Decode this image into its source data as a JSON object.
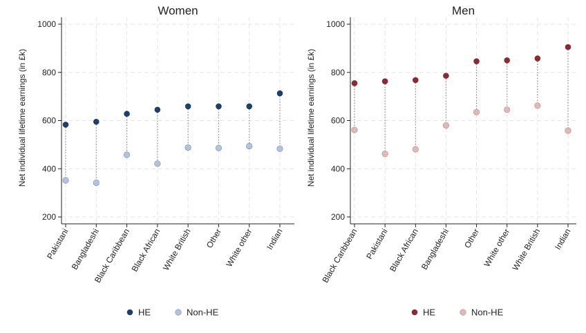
{
  "chart_data": [
    {
      "type": "scatter",
      "title": "Women",
      "ylabel": "Net individual lifetime earnings (in £k)",
      "xlabel": "",
      "ylim": [
        200,
        1000
      ],
      "yticks": [
        200,
        400,
        600,
        800,
        1000
      ],
      "grid": true,
      "legend_position": "bottom",
      "categories": [
        "Pakistani",
        "Bangladeshi",
        "Black Caribbean",
        "Black African",
        "White British",
        "Other",
        "White other",
        "Indian"
      ],
      "series": [
        {
          "name": "HE",
          "color": "#1f3f66",
          "values": [
            583,
            595,
            628,
            645,
            659,
            659,
            659,
            713
          ]
        },
        {
          "name": "Non-HE",
          "color": "#b3c3dc",
          "values": [
            352,
            342,
            458,
            421,
            488,
            486,
            494,
            483
          ]
        }
      ]
    },
    {
      "type": "scatter",
      "title": "Men",
      "ylabel": "Net individual lifetime earnings (in £k)",
      "xlabel": "",
      "ylim": [
        200,
        1000
      ],
      "yticks": [
        200,
        400,
        600,
        800,
        1000
      ],
      "grid": true,
      "legend_position": "bottom",
      "categories": [
        "Black Caribbean",
        "Pakistani",
        "Black African",
        "Bangladeshi",
        "Other",
        "White other",
        "White British",
        "Indian"
      ],
      "series": [
        {
          "name": "HE",
          "color": "#8c2a33",
          "values": [
            755,
            763,
            768,
            786,
            846,
            850,
            858,
            905
          ]
        },
        {
          "name": "Non-HE",
          "color": "#dfb8b8",
          "values": [
            561,
            462,
            481,
            580,
            635,
            645,
            662,
            558
          ]
        }
      ]
    }
  ]
}
